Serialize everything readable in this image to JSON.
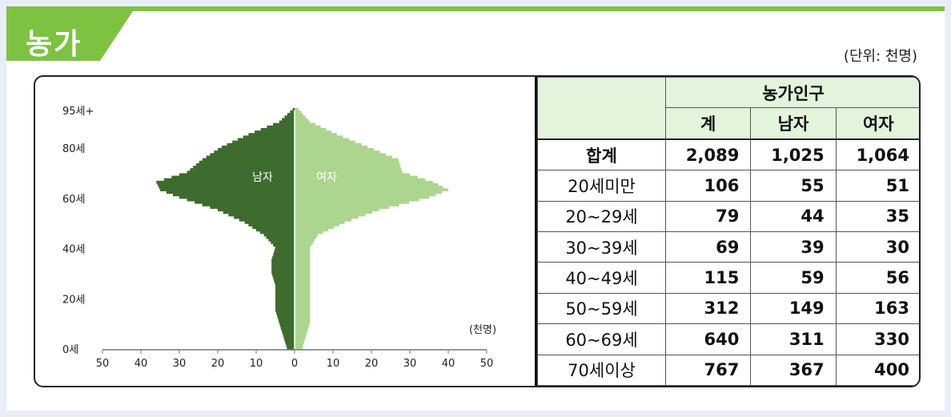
{
  "title": "농가",
  "unit": "(단위: 천명)",
  "chart_data": {
    "type": "population-pyramid",
    "ylabels": [
      "95세+",
      "80세",
      "60세",
      "40세",
      "20세",
      "0세"
    ],
    "xticks": [
      "50",
      "40",
      "30",
      "20",
      "10",
      "0",
      "10",
      "20",
      "30",
      "40",
      "50"
    ],
    "xunit": "(천명)",
    "series": [
      {
        "name": "남자",
        "color": "#3e6b2e"
      },
      {
        "name": "여자",
        "color": "#acd68f"
      }
    ],
    "ages": [
      0,
      5,
      10,
      15,
      20,
      25,
      30,
      35,
      40,
      45,
      50,
      55,
      60,
      63,
      66,
      70,
      75,
      80,
      85,
      90,
      95
    ],
    "male": [
      2,
      3,
      4,
      5,
      5,
      5,
      6,
      6,
      5,
      8,
      13,
      20,
      30,
      35,
      36,
      28,
      24,
      19,
      12,
      4,
      0.5
    ],
    "female": [
      2,
      3,
      4,
      4,
      4,
      4,
      4,
      4,
      4,
      6,
      13,
      22,
      35,
      40,
      36,
      28,
      27,
      19,
      11,
      4,
      1
    ]
  },
  "table": {
    "header_group": "농가인구",
    "headers": [
      "계",
      "남자",
      "여자"
    ],
    "rows": [
      {
        "label": "합계",
        "values": [
          "2,089",
          "1,025",
          "1,064"
        ]
      },
      {
        "label": "20세미만",
        "values": [
          "106",
          "55",
          "51"
        ]
      },
      {
        "label": "20~29세",
        "values": [
          "79",
          "44",
          "35"
        ]
      },
      {
        "label": "30~39세",
        "values": [
          "69",
          "39",
          "30"
        ]
      },
      {
        "label": "40~49세",
        "values": [
          "115",
          "59",
          "56"
        ]
      },
      {
        "label": "50~59세",
        "values": [
          "312",
          "149",
          "163"
        ]
      },
      {
        "label": "60~69세",
        "values": [
          "640",
          "311",
          "330"
        ]
      },
      {
        "label": "70세이상",
        "values": [
          "767",
          "367",
          "400"
        ]
      }
    ]
  }
}
